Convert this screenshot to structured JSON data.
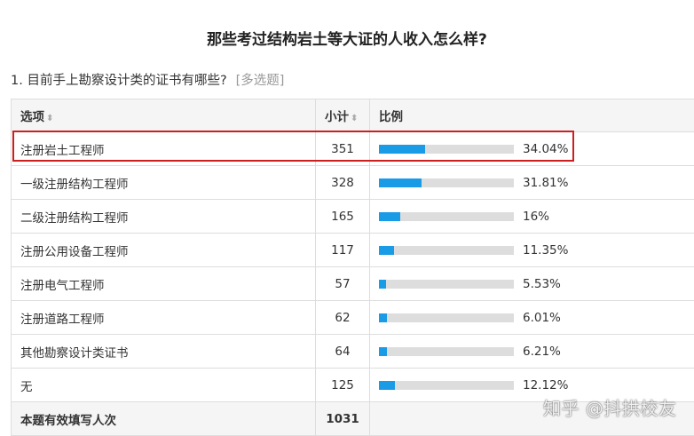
{
  "title": "那些考过结构岩土等大证的人收入怎么样?",
  "question": {
    "text": "1. 目前手上勘察设计类的证书有哪些?",
    "type": "[多选题]"
  },
  "table": {
    "headers": {
      "option": "选项",
      "count": "小计",
      "ratio": "比例",
      "sort_icon": "⬍"
    },
    "rows": [
      {
        "option": "注册岩土工程师",
        "count": "351",
        "percent": "34.04%",
        "ratio": 0.3404
      },
      {
        "option": "一级注册结构工程师",
        "count": "328",
        "percent": "31.81%",
        "ratio": 0.3181
      },
      {
        "option": "二级注册结构工程师",
        "count": "165",
        "percent": "16%",
        "ratio": 0.16
      },
      {
        "option": "注册公用设备工程师",
        "count": "117",
        "percent": "11.35%",
        "ratio": 0.1135
      },
      {
        "option": "注册电气工程师",
        "count": "57",
        "percent": "5.53%",
        "ratio": 0.0553
      },
      {
        "option": "注册道路工程师",
        "count": "62",
        "percent": "6.01%",
        "ratio": 0.0601
      },
      {
        "option": "其他勘察设计类证书",
        "count": "64",
        "percent": "6.21%",
        "ratio": 0.0621
      },
      {
        "option": "无",
        "count": "125",
        "percent": "12.12%",
        "ratio": 0.1212
      }
    ],
    "total": {
      "label": "本题有效填写人次",
      "count": "1031"
    }
  },
  "colors": {
    "bar_fill": "#1a9be6",
    "bar_track": "#dddddd",
    "highlight": "#cc1f1f"
  },
  "watermark": "知乎 @抖拱校友"
}
